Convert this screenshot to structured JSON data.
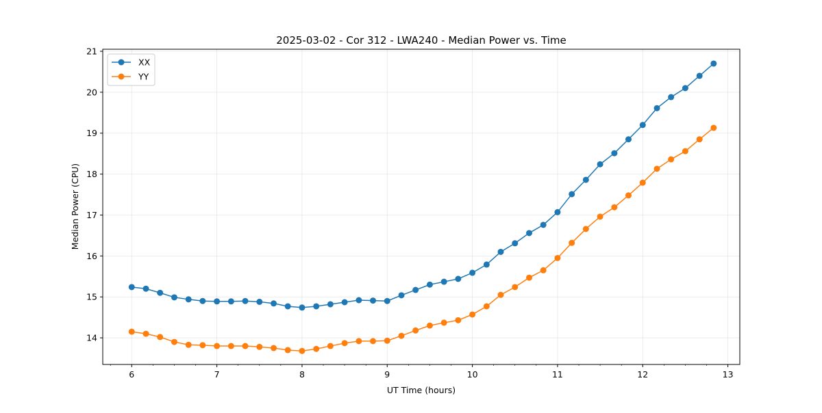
{
  "chart_data": {
    "type": "line",
    "title": "2025-03-02 - Cor 312 - LWA240 - Median Power vs. Time",
    "xlabel": "UT Time (hours)",
    "ylabel": "Median Power (CPU)",
    "xlim": [
      5.66,
      13.14
    ],
    "ylim": [
      13.35,
      21.05
    ],
    "xticks": [
      6,
      7,
      8,
      9,
      10,
      11,
      12,
      13
    ],
    "yticks": [
      14,
      15,
      16,
      17,
      18,
      19,
      20,
      21
    ],
    "grid": true,
    "legend": "top-left",
    "x": [
      6.0,
      6.167,
      6.333,
      6.5,
      6.667,
      6.833,
      7.0,
      7.167,
      7.333,
      7.5,
      7.667,
      7.833,
      8.0,
      8.167,
      8.333,
      8.5,
      8.667,
      8.833,
      9.0,
      9.167,
      9.333,
      9.5,
      9.667,
      9.833,
      10.0,
      10.167,
      10.333,
      10.5,
      10.667,
      10.833,
      11.0,
      11.167,
      11.333,
      11.5,
      11.667,
      11.833,
      12.0,
      12.167,
      12.333,
      12.5,
      12.667,
      12.833
    ],
    "series": [
      {
        "name": "XX",
        "color": "#1f77b4",
        "values": [
          15.24,
          15.2,
          15.1,
          14.99,
          14.94,
          14.9,
          14.89,
          14.89,
          14.9,
          14.88,
          14.84,
          14.77,
          14.74,
          14.77,
          14.82,
          14.87,
          14.92,
          14.91,
          14.9,
          15.04,
          15.17,
          15.3,
          15.37,
          15.44,
          15.59,
          15.79,
          16.1,
          16.31,
          16.56,
          16.76,
          17.07,
          17.51,
          17.86,
          18.24,
          18.51,
          18.85,
          19.2,
          19.61,
          19.88,
          20.1,
          20.4,
          20.7
        ]
      },
      {
        "name": "YY",
        "color": "#ff7f0e",
        "values": [
          14.15,
          14.1,
          14.02,
          13.9,
          13.83,
          13.82,
          13.8,
          13.8,
          13.8,
          13.78,
          13.75,
          13.7,
          13.68,
          13.73,
          13.8,
          13.87,
          13.92,
          13.92,
          13.93,
          14.05,
          14.18,
          14.3,
          14.37,
          14.43,
          14.57,
          14.77,
          15.05,
          15.24,
          15.47,
          15.65,
          15.95,
          16.32,
          16.66,
          16.96,
          17.19,
          17.48,
          17.79,
          18.13,
          18.36,
          18.56,
          18.85,
          19.13
        ]
      }
    ]
  }
}
